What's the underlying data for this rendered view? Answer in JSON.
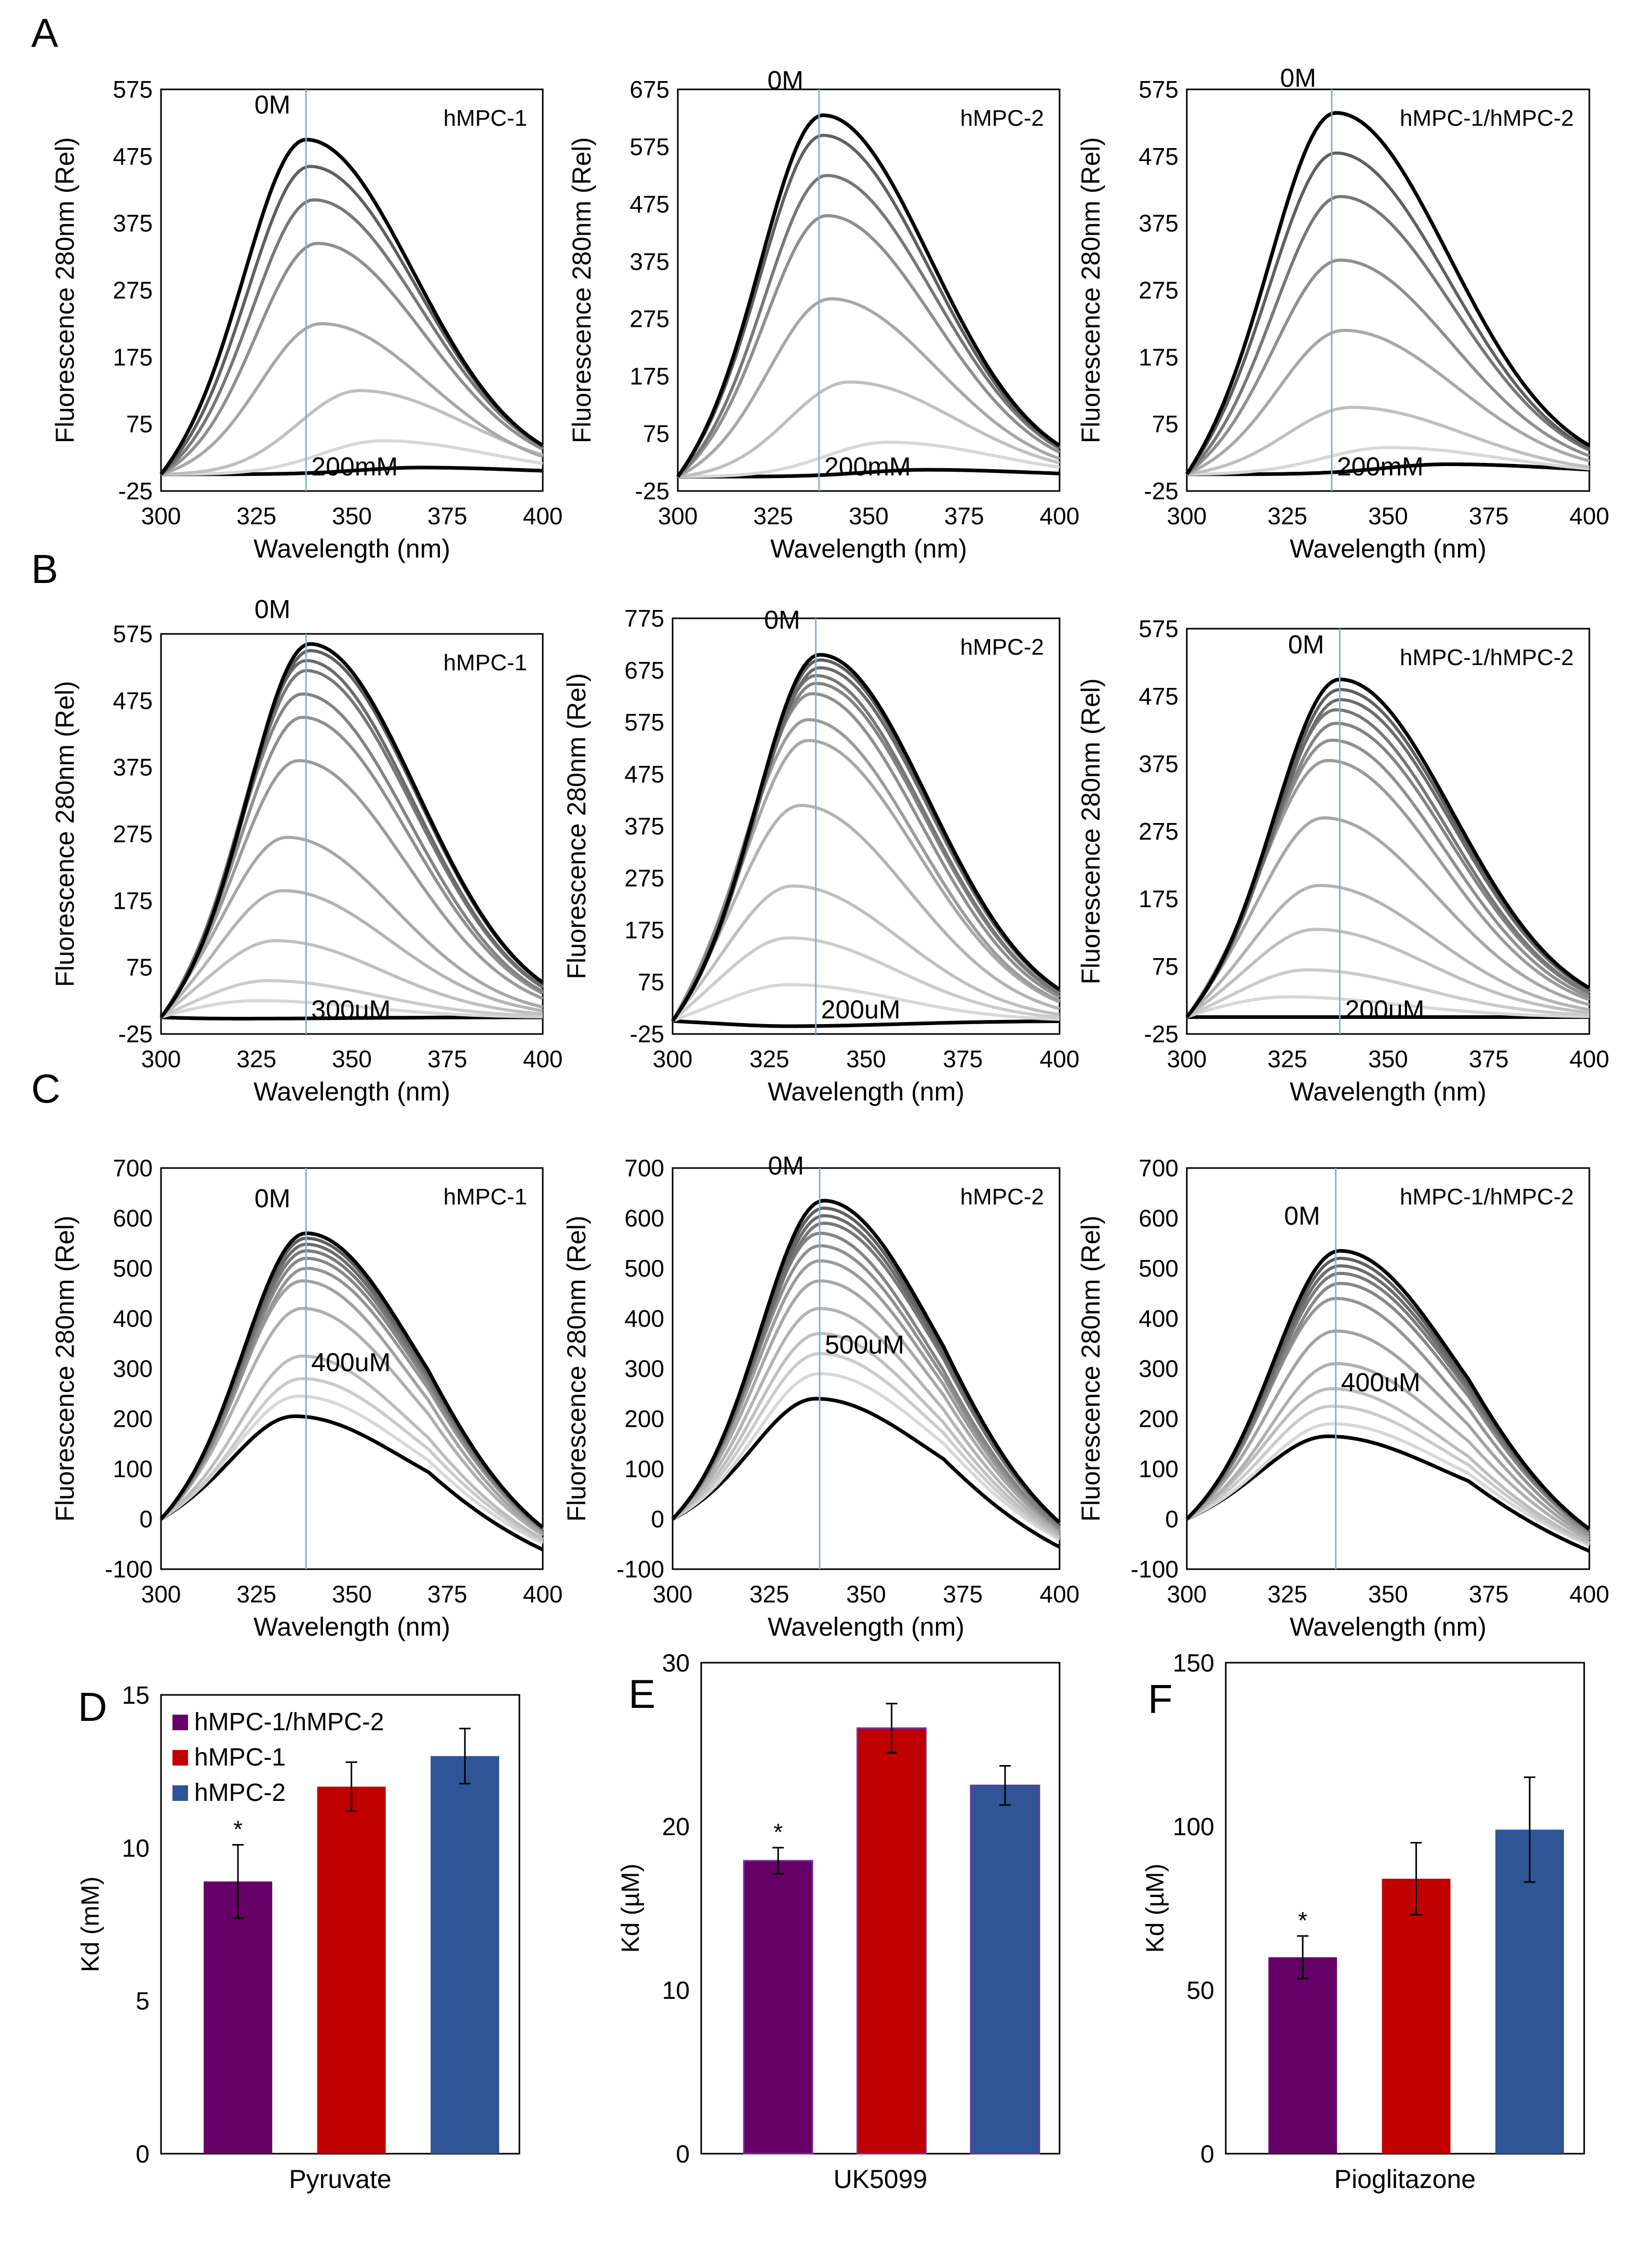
{
  "figure": {
    "panel_letters": [
      "A",
      "B",
      "C",
      "D",
      "E",
      "F"
    ],
    "spectra_xlabel": "Wavelength (nm)",
    "spectra_ylabel": "Fluorescence 280nm (Rel)",
    "zero_label": "0M",
    "colors": {
      "black": "#000000",
      "blue_line": "#7fb0d6",
      "purple": "#660066",
      "red": "#c00000",
      "blue": "#2f5597"
    }
  },
  "chart_data": [
    {
      "type": "line",
      "panel": "A",
      "title": "hMPC-1",
      "xlabel": "Wavelength (nm)",
      "ylabel": "Fluorescence 280nm (Rel)",
      "xlim": [
        300,
        400
      ],
      "ylim": [
        -25,
        575
      ],
      "xticks": [
        300,
        325,
        350,
        375,
        400
      ],
      "yticks": [
        -25,
        75,
        175,
        275,
        375,
        475,
        575
      ],
      "vline_x": 338,
      "start_label": "0M",
      "end_label": "200mM",
      "series": [
        {
          "name": "0M",
          "peak_x": 338,
          "peak_y": 500
        },
        {
          "peak_x": 339,
          "peak_y": 460
        },
        {
          "peak_x": 340,
          "peak_y": 410
        },
        {
          "peak_x": 341,
          "peak_y": 345
        },
        {
          "peak_x": 342,
          "peak_y": 225
        },
        {
          "peak_x": 352,
          "peak_y": 125
        },
        {
          "peak_x": 358,
          "peak_y": 50
        },
        {
          "name": "200mM",
          "peak_x": 368,
          "peak_y": 10
        }
      ]
    },
    {
      "type": "line",
      "panel": "A",
      "title": "hMPC-2",
      "xlabel": "Wavelength (nm)",
      "ylabel": "Fluorescence 280nm (Rel)",
      "xlim": [
        300,
        400
      ],
      "ylim": [
        -25,
        675
      ],
      "xticks": [
        300,
        325,
        350,
        375,
        400
      ],
      "yticks": [
        -25,
        75,
        175,
        275,
        375,
        475,
        575,
        675
      ],
      "vline_x": 337,
      "start_label": "0M",
      "end_label": "200mM",
      "series": [
        {
          "name": "0M",
          "peak_x": 338,
          "peak_y": 630
        },
        {
          "peak_x": 338,
          "peak_y": 595
        },
        {
          "peak_x": 339,
          "peak_y": 525
        },
        {
          "peak_x": 339,
          "peak_y": 455
        },
        {
          "peak_x": 340,
          "peak_y": 310
        },
        {
          "peak_x": 345,
          "peak_y": 165
        },
        {
          "peak_x": 355,
          "peak_y": 60
        },
        {
          "name": "200mM",
          "peak_x": 365,
          "peak_y": 12
        }
      ]
    },
    {
      "type": "line",
      "panel": "A",
      "title": "hMPC-1/hMPC-2",
      "xlabel": "Wavelength (nm)",
      "ylabel": "Fluorescence 280nm (Rel)",
      "xlim": [
        300,
        400
      ],
      "ylim": [
        -25,
        575
      ],
      "xticks": [
        300,
        325,
        350,
        375,
        400
      ],
      "yticks": [
        -25,
        75,
        175,
        275,
        375,
        475,
        575
      ],
      "vline_x": 336,
      "start_label": "0M",
      "end_label": "200mM",
      "series": [
        {
          "name": "0M",
          "peak_x": 337,
          "peak_y": 540
        },
        {
          "peak_x": 337,
          "peak_y": 480
        },
        {
          "peak_x": 338,
          "peak_y": 415
        },
        {
          "peak_x": 338,
          "peak_y": 320
        },
        {
          "peak_x": 339,
          "peak_y": 215
        },
        {
          "peak_x": 341,
          "peak_y": 100
        },
        {
          "peak_x": 350,
          "peak_y": 40
        },
        {
          "name": "200mM",
          "peak_x": 365,
          "peak_y": 15
        }
      ]
    },
    {
      "type": "line",
      "panel": "B",
      "title": "hMPC-1",
      "xlabel": "Wavelength (nm)",
      "ylabel": "Fluorescence 280nm (Rel)",
      "xlim": [
        300,
        400
      ],
      "ylim": [
        -25,
        575
      ],
      "xticks": [
        300,
        325,
        350,
        375,
        400
      ],
      "yticks": [
        -25,
        75,
        175,
        275,
        375,
        475,
        575
      ],
      "vline_x": 338,
      "start_label": "0M",
      "end_label": "300uM",
      "series": [
        {
          "name": "0M",
          "peak_x": 339,
          "peak_y": 560
        },
        {
          "peak_x": 339,
          "peak_y": 550
        },
        {
          "peak_x": 338,
          "peak_y": 535
        },
        {
          "peak_x": 338,
          "peak_y": 520
        },
        {
          "peak_x": 337,
          "peak_y": 485
        },
        {
          "peak_x": 337,
          "peak_y": 450
        },
        {
          "peak_x": 336,
          "peak_y": 385
        },
        {
          "peak_x": 333,
          "peak_y": 270
        },
        {
          "peak_x": 332,
          "peak_y": 190
        },
        {
          "peak_x": 330,
          "peak_y": 115
        },
        {
          "peak_x": 328,
          "peak_y": 55
        },
        {
          "peak_x": 325,
          "peak_y": 25
        },
        {
          "name": "300uM",
          "peak_x": 320,
          "peak_y": -2
        }
      ]
    },
    {
      "type": "line",
      "panel": "B",
      "title": "hMPC-2",
      "xlabel": "Wavelength (nm)",
      "ylabel": "Fluorescence 280nm (Rel)",
      "xlim": [
        300,
        400
      ],
      "ylim": [
        -25,
        775
      ],
      "xticks": [
        300,
        325,
        350,
        375,
        400
      ],
      "yticks": [
        -25,
        75,
        175,
        275,
        375,
        475,
        575,
        675,
        775
      ],
      "vline_x": 337,
      "start_label": "0M",
      "end_label": "200uM",
      "series": [
        {
          "name": "0M",
          "peak_x": 338,
          "peak_y": 705
        },
        {
          "peak_x": 338,
          "peak_y": 695
        },
        {
          "peak_x": 338,
          "peak_y": 680
        },
        {
          "peak_x": 337,
          "peak_y": 665
        },
        {
          "peak_x": 337,
          "peak_y": 650
        },
        {
          "peak_x": 336,
          "peak_y": 630
        },
        {
          "peak_x": 335,
          "peak_y": 580
        },
        {
          "peak_x": 335,
          "peak_y": 540
        },
        {
          "peak_x": 333,
          "peak_y": 415
        },
        {
          "peak_x": 331,
          "peak_y": 260
        },
        {
          "peak_x": 330,
          "peak_y": 160
        },
        {
          "peak_x": 330,
          "peak_y": 70
        },
        {
          "name": "200uM",
          "peak_x": 330,
          "peak_y": -10
        }
      ]
    },
    {
      "type": "line",
      "panel": "B",
      "title": "hMPC-1/hMPC-2",
      "xlabel": "Wavelength (nm)",
      "ylabel": "Fluorescence 280nm (Rel)",
      "xlim": [
        300,
        400
      ],
      "ylim": [
        -25,
        575
      ],
      "xticks": [
        300,
        325,
        350,
        375,
        400
      ],
      "yticks": [
        -25,
        75,
        175,
        275,
        375,
        475,
        575
      ],
      "vline_x": 338,
      "start_label": "0M",
      "end_label": "200uM",
      "series": [
        {
          "name": "0M",
          "peak_x": 338,
          "peak_y": 500
        },
        {
          "peak_x": 338,
          "peak_y": 485
        },
        {
          "peak_x": 338,
          "peak_y": 470
        },
        {
          "peak_x": 337,
          "peak_y": 455
        },
        {
          "peak_x": 337,
          "peak_y": 435
        },
        {
          "peak_x": 336,
          "peak_y": 410
        },
        {
          "peak_x": 335,
          "peak_y": 380
        },
        {
          "peak_x": 334,
          "peak_y": 295
        },
        {
          "peak_x": 333,
          "peak_y": 195
        },
        {
          "peak_x": 332,
          "peak_y": 130
        },
        {
          "peak_x": 330,
          "peak_y": 70
        },
        {
          "peak_x": 325,
          "peak_y": 30
        },
        {
          "name": "200uM",
          "peak_x": 315,
          "peak_y": 0
        }
      ]
    },
    {
      "type": "line",
      "panel": "C",
      "title": "hMPC-1",
      "xlabel": "Wavelength (nm)",
      "ylabel": "Fluorescence 280nm (Rel)",
      "xlim": [
        300,
        400
      ],
      "ylim": [
        -100,
        700
      ],
      "xticks": [
        300,
        325,
        350,
        375,
        400
      ],
      "yticks": [
        -100,
        0,
        100,
        200,
        300,
        400,
        500,
        600,
        700
      ],
      "vline_x": 338,
      "start_label": "0M",
      "end_label": "400uM",
      "series": [
        {
          "name": "0M",
          "peak_x": 338,
          "peak_y": 570
        },
        {
          "peak_x": 338,
          "peak_y": 560
        },
        {
          "peak_x": 338,
          "peak_y": 548
        },
        {
          "peak_x": 338,
          "peak_y": 535
        },
        {
          "peak_x": 338,
          "peak_y": 520
        },
        {
          "peak_x": 338,
          "peak_y": 500
        },
        {
          "peak_x": 337,
          "peak_y": 475
        },
        {
          "peak_x": 337,
          "peak_y": 420
        },
        {
          "peak_x": 337,
          "peak_y": 325
        },
        {
          "peak_x": 337,
          "peak_y": 280
        },
        {
          "peak_x": 336,
          "peak_y": 245
        },
        {
          "name": "400uM",
          "peak_x": 335,
          "peak_y": 205
        }
      ]
    },
    {
      "type": "line",
      "panel": "C",
      "title": "hMPC-2",
      "xlabel": "Wavelength (nm)",
      "ylabel": "Fluorescence 280nm (Rel)",
      "xlim": [
        300,
        400
      ],
      "ylim": [
        -100,
        700
      ],
      "xticks": [
        300,
        325,
        350,
        375,
        400
      ],
      "yticks": [
        -100,
        0,
        100,
        200,
        300,
        400,
        500,
        600,
        700
      ],
      "vline_x": 338,
      "start_label": "0M",
      "end_label": "500uM",
      "series": [
        {
          "name": "0M",
          "peak_x": 339,
          "peak_y": 635
        },
        {
          "peak_x": 339,
          "peak_y": 620
        },
        {
          "peak_x": 339,
          "peak_y": 605
        },
        {
          "peak_x": 339,
          "peak_y": 590
        },
        {
          "peak_x": 338,
          "peak_y": 570
        },
        {
          "peak_x": 338,
          "peak_y": 545
        },
        {
          "peak_x": 338,
          "peak_y": 515
        },
        {
          "peak_x": 338,
          "peak_y": 475
        },
        {
          "peak_x": 338,
          "peak_y": 420
        },
        {
          "peak_x": 338,
          "peak_y": 370
        },
        {
          "peak_x": 338,
          "peak_y": 330
        },
        {
          "peak_x": 338,
          "peak_y": 290
        },
        {
          "name": "500uM",
          "peak_x": 337,
          "peak_y": 240
        }
      ]
    },
    {
      "type": "line",
      "panel": "C",
      "title": "hMPC-1/hMPC-2",
      "xlabel": "Wavelength (nm)",
      "ylabel": "Fluorescence 280nm (Rel)",
      "xlim": [
        300,
        400
      ],
      "ylim": [
        -100,
        700
      ],
      "xticks": [
        300,
        325,
        350,
        375,
        400
      ],
      "yticks": [
        -100,
        0,
        100,
        200,
        300,
        400,
        500,
        600,
        700
      ],
      "vline_x": 337,
      "start_label": "0M",
      "end_label": "400uM",
      "series": [
        {
          "name": "0M",
          "peak_x": 338,
          "peak_y": 535
        },
        {
          "peak_x": 338,
          "peak_y": 520
        },
        {
          "peak_x": 338,
          "peak_y": 505
        },
        {
          "peak_x": 338,
          "peak_y": 490
        },
        {
          "peak_x": 338,
          "peak_y": 470
        },
        {
          "peak_x": 337,
          "peak_y": 440
        },
        {
          "peak_x": 337,
          "peak_y": 375
        },
        {
          "peak_x": 337,
          "peak_y": 310
        },
        {
          "peak_x": 336,
          "peak_y": 260
        },
        {
          "peak_x": 336,
          "peak_y": 225
        },
        {
          "peak_x": 336,
          "peak_y": 190
        },
        {
          "name": "400uM",
          "peak_x": 335,
          "peak_y": 165
        }
      ]
    },
    {
      "type": "bar",
      "panel": "D",
      "title": "",
      "xlabel": "Pyruvate",
      "ylabel": "Kd (mM)",
      "ylim": [
        0,
        15
      ],
      "yticks": [
        0,
        5,
        10,
        15
      ],
      "categories": [
        "hMPC-1/hMPC-2",
        "hMPC-1",
        "hMPC-2"
      ],
      "values": [
        8.9,
        12.0,
        13.0
      ],
      "errors": [
        1.2,
        0.8,
        0.9
      ],
      "significance": [
        "*",
        "",
        ""
      ],
      "legend": [
        "hMPC-1/hMPC-2",
        "hMPC-1",
        "hMPC-2"
      ],
      "legend_position": "top-left"
    },
    {
      "type": "bar",
      "panel": "E",
      "title": "",
      "xlabel": "UK5099",
      "ylabel": "Kd (µM)",
      "ylim": [
        0,
        30
      ],
      "yticks": [
        0,
        10,
        20,
        30
      ],
      "categories": [
        "hMPC-1/hMPC-2",
        "hMPC-1",
        "hMPC-2"
      ],
      "values": [
        17.9,
        26.0,
        22.5
      ],
      "errors": [
        0.8,
        1.5,
        1.2
      ],
      "significance": [
        "*",
        "",
        ""
      ]
    },
    {
      "type": "bar",
      "panel": "F",
      "title": "",
      "xlabel": "Pioglitazone",
      "ylabel": "Kd (µM)",
      "ylim": [
        0,
        150
      ],
      "yticks": [
        0,
        50,
        100,
        150
      ],
      "categories": [
        "hMPC-1/hMPC-2",
        "hMPC-1",
        "hMPC-2"
      ],
      "values": [
        60,
        84,
        99
      ],
      "errors": [
        6.5,
        11,
        16
      ],
      "significance": [
        "*",
        "",
        ""
      ]
    }
  ]
}
